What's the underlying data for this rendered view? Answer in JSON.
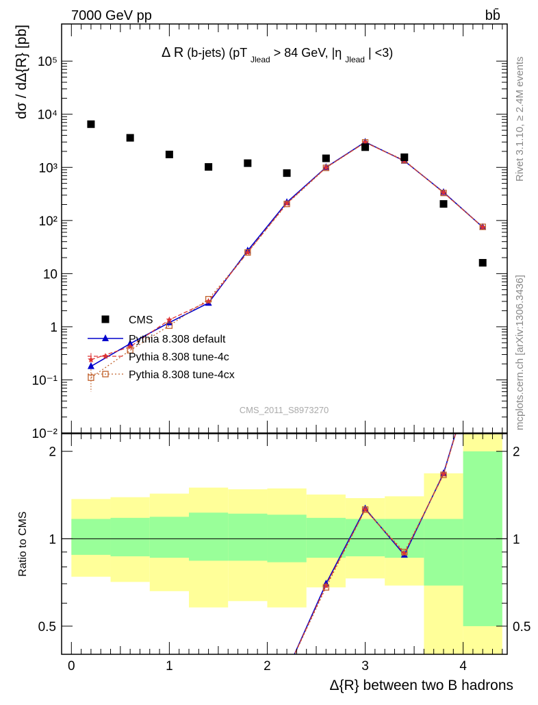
{
  "header": {
    "energy_label": "7000 GeV pp",
    "process_label": "bb̄"
  },
  "side": {
    "rivet": "Rivet 3.1.10, ≥ 2.4M events",
    "mcplots": "mcplots.cern.ch [arXiv:1306.3436]"
  },
  "plot": {
    "title": "Δ R(b-jets) (pT_Jlead > 84 GeV, |η_Jlead| <3)",
    "title_main": "Δ R",
    "title_part1": "(b-jets) (pT",
    "title_sub1": "Jlead",
    "title_part2": " > 84 GeV, |η",
    "title_sub2": "Jlead",
    "title_part3": "| <3)",
    "analysis_id": "CMS_2011_S8973270",
    "ylabel": "dσ / dΔ{R} [pb]",
    "ratio_ylabel": "Ratio to CMS",
    "xlabel": "Δ{R} between two B hadrons"
  },
  "axes": {
    "y_tick_labels": [
      "10⁻²",
      "10⁻¹",
      "1",
      "10",
      "10²",
      "10³",
      "10⁴",
      "10⁵"
    ],
    "ratio_tick_labels": [
      "0.5",
      "1",
      "2"
    ],
    "x_tick_labels": [
      "0",
      "1",
      "2",
      "3",
      "4"
    ]
  },
  "legend": {
    "entries": [
      "CMS",
      "Pythia 8.308 default",
      "Pythia 8.308 tune-4c",
      "Pythia 8.308 tune-4cx"
    ]
  },
  "colors": {
    "cms": "#000000",
    "default": "#0000cc",
    "tune4c": "#dd3333",
    "tune4cx": "#c0602a",
    "band_inner": "#99ff99",
    "band_outer": "#ffff99"
  },
  "chart_data": {
    "type": "scatter",
    "xlim": [
      -0.1,
      4.45
    ],
    "ylim": [
      0.01,
      500000
    ],
    "yscale": "log",
    "ratio_ylim": [
      0.4,
      2.3
    ],
    "ratio_yscale": "log",
    "bin_edges": [
      0.0,
      0.4,
      0.8,
      1.2,
      1.6,
      2.0,
      2.4,
      2.8,
      3.2,
      3.6,
      4.0,
      4.4
    ],
    "x": [
      0.2,
      0.6,
      1.0,
      1.4,
      1.8,
      2.2,
      2.6,
      3.0,
      3.4,
      3.8,
      4.2
    ],
    "series": [
      {
        "name": "CMS",
        "values": [
          6500,
          3600,
          1750,
          1020,
          1200,
          780,
          1480,
          2400,
          1550,
          205,
          16
        ]
      },
      {
        "name": "Pythia 8.308 default",
        "values": [
          0.18,
          0.48,
          1.2,
          2.8,
          27,
          220,
          1000,
          3000,
          1320,
          340,
          75
        ]
      },
      {
        "name": "Pythia 8.308 tune-4c",
        "values": [
          0.24,
          0.42,
          1.35,
          3.0,
          25,
          210,
          990,
          2950,
          1330,
          335,
          75
        ]
      },
      {
        "name": "Pythia 8.308 tune-4cx",
        "values": [
          0.11,
          0.36,
          1.05,
          3.3,
          25,
          205,
          980,
          2950,
          1360,
          330,
          76
        ]
      }
    ],
    "ratio": {
      "inner_band": [
        [
          0.88,
          1.17
        ],
        [
          0.87,
          1.18
        ],
        [
          0.86,
          1.19
        ],
        [
          0.84,
          1.23
        ],
        [
          0.84,
          1.22
        ],
        [
          0.83,
          1.21
        ],
        [
          0.86,
          1.18
        ],
        [
          0.87,
          1.17
        ],
        [
          0.86,
          1.17
        ],
        [
          0.69,
          1.17
        ],
        [
          0.5,
          2.0
        ]
      ],
      "outer_band": [
        [
          0.74,
          1.37
        ],
        [
          0.71,
          1.39
        ],
        [
          0.66,
          1.43
        ],
        [
          0.58,
          1.5
        ],
        [
          0.61,
          1.48
        ],
        [
          0.58,
          1.49
        ],
        [
          0.68,
          1.42
        ],
        [
          0.73,
          1.38
        ],
        [
          0.69,
          1.4
        ],
        [
          0.35,
          1.68
        ],
        [
          0.35,
          2.3
        ]
      ],
      "default": [
        0.35,
        0.35,
        0.35,
        0.35,
        0.35,
        0.35,
        0.7,
        1.27,
        0.88,
        1.68,
        4.7
      ],
      "tune4c": [
        0.35,
        0.35,
        0.35,
        0.35,
        0.35,
        0.35,
        0.69,
        1.26,
        0.89,
        1.67,
        4.7
      ],
      "tune4cx": [
        0.35,
        0.35,
        0.35,
        0.35,
        0.35,
        0.35,
        0.68,
        1.26,
        0.9,
        1.66,
        4.7
      ]
    }
  }
}
